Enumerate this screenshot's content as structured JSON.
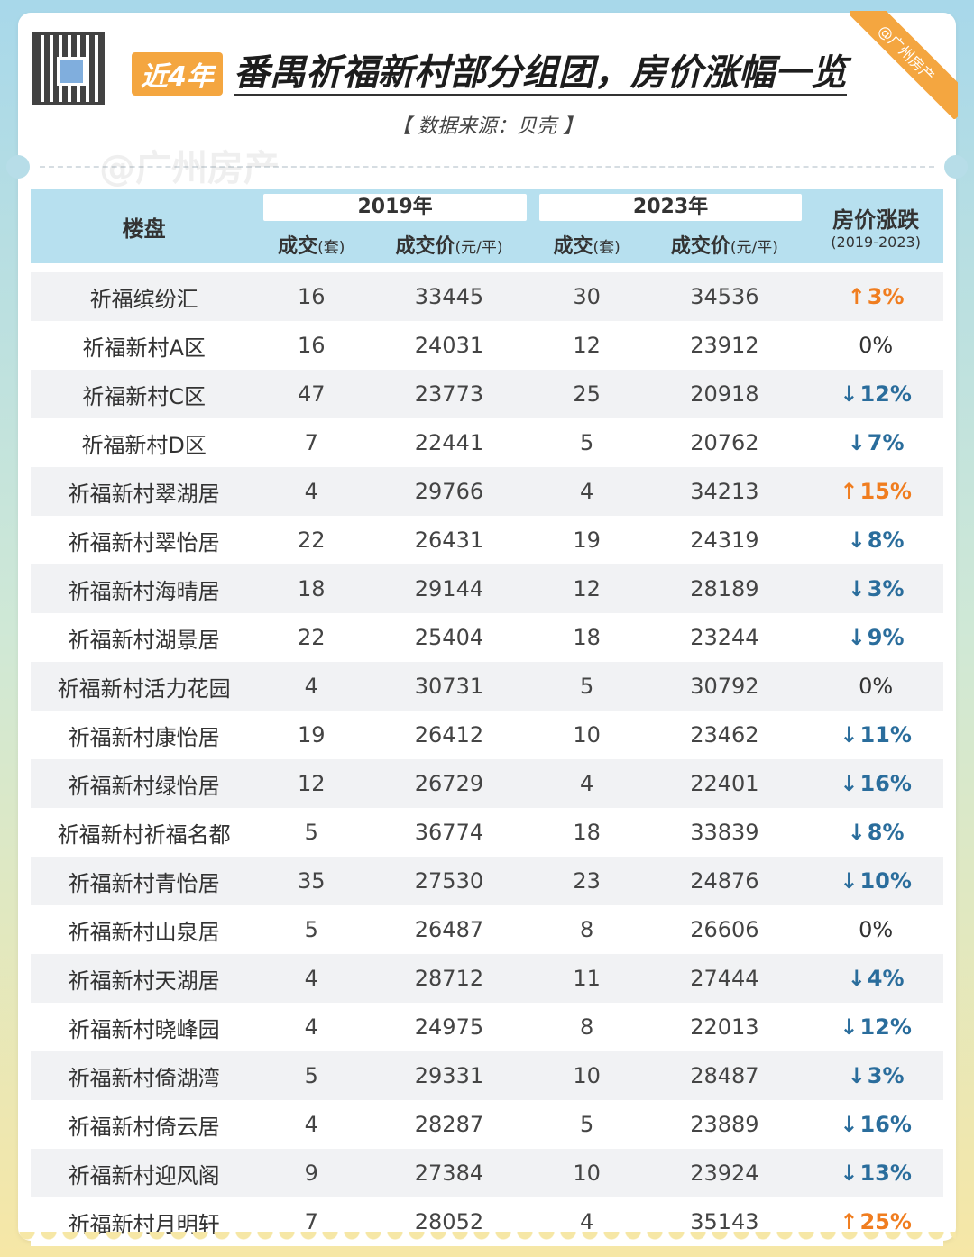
{
  "header": {
    "badge": "近4年",
    "title": "番禺祈福新村部分组团，房价涨幅一览",
    "source": "【 数据来源：贝壳 】",
    "ribbon": "@广州房产",
    "watermark": "@广州房产"
  },
  "table": {
    "col_loupan": "楼盘",
    "year_2019": "2019年",
    "year_2023": "2023年",
    "sub_deals": "成交",
    "sub_deals_unit": "(套)",
    "sub_price": "成交价",
    "sub_price_unit": "(元/平)",
    "col_change": "房价涨跌",
    "col_change_range": "(2019-2023)",
    "rows": [
      {
        "name": "祈福缤纷汇",
        "d2019": "16",
        "p2019": "33445",
        "d2023": "30",
        "p2023": "34536",
        "dir": "up",
        "arrow": "↑",
        "change": "3%"
      },
      {
        "name": "祈福新村A区",
        "d2019": "16",
        "p2019": "24031",
        "d2023": "12",
        "p2023": "23912",
        "dir": "flat",
        "arrow": "",
        "change": "0%"
      },
      {
        "name": "祈福新村C区",
        "d2019": "47",
        "p2019": "23773",
        "d2023": "25",
        "p2023": "20918",
        "dir": "down",
        "arrow": "↓",
        "change": "12%"
      },
      {
        "name": "祈福新村D区",
        "d2019": "7",
        "p2019": "22441",
        "d2023": "5",
        "p2023": "20762",
        "dir": "down",
        "arrow": "↓",
        "change": "7%"
      },
      {
        "name": "祈福新村翠湖居",
        "d2019": "4",
        "p2019": "29766",
        "d2023": "4",
        "p2023": "34213",
        "dir": "up",
        "arrow": "↑",
        "change": "15%"
      },
      {
        "name": "祈福新村翠怡居",
        "d2019": "22",
        "p2019": "26431",
        "d2023": "19",
        "p2023": "24319",
        "dir": "down",
        "arrow": "↓",
        "change": "8%"
      },
      {
        "name": "祈福新村海晴居",
        "d2019": "18",
        "p2019": "29144",
        "d2023": "12",
        "p2023": "28189",
        "dir": "down",
        "arrow": "↓",
        "change": "3%"
      },
      {
        "name": "祈福新村湖景居",
        "d2019": "22",
        "p2019": "25404",
        "d2023": "18",
        "p2023": "23244",
        "dir": "down",
        "arrow": "↓",
        "change": "9%"
      },
      {
        "name": "祈福新村活力花园",
        "d2019": "4",
        "p2019": "30731",
        "d2023": "5",
        "p2023": "30792",
        "dir": "flat",
        "arrow": "",
        "change": "0%"
      },
      {
        "name": "祈福新村康怡居",
        "d2019": "19",
        "p2019": "26412",
        "d2023": "10",
        "p2023": "23462",
        "dir": "down",
        "arrow": "↓",
        "change": "11%"
      },
      {
        "name": "祈福新村绿怡居",
        "d2019": "12",
        "p2019": "26729",
        "d2023": "4",
        "p2023": "22401",
        "dir": "down",
        "arrow": "↓",
        "change": "16%"
      },
      {
        "name": "祈福新村祈福名都",
        "d2019": "5",
        "p2019": "36774",
        "d2023": "18",
        "p2023": "33839",
        "dir": "down",
        "arrow": "↓",
        "change": "8%"
      },
      {
        "name": "祈福新村青怡居",
        "d2019": "35",
        "p2019": "27530",
        "d2023": "23",
        "p2023": "24876",
        "dir": "down",
        "arrow": "↓",
        "change": "10%"
      },
      {
        "name": "祈福新村山泉居",
        "d2019": "5",
        "p2019": "26487",
        "d2023": "8",
        "p2023": "26606",
        "dir": "flat",
        "arrow": "",
        "change": "0%"
      },
      {
        "name": "祈福新村天湖居",
        "d2019": "4",
        "p2019": "28712",
        "d2023": "11",
        "p2023": "27444",
        "dir": "down",
        "arrow": "↓",
        "change": "4%"
      },
      {
        "name": "祈福新村晓峰园",
        "d2019": "4",
        "p2019": "24975",
        "d2023": "8",
        "p2023": "22013",
        "dir": "down",
        "arrow": "↓",
        "change": "12%"
      },
      {
        "name": "祈福新村倚湖湾",
        "d2019": "5",
        "p2019": "29331",
        "d2023": "10",
        "p2023": "28487",
        "dir": "down",
        "arrow": "↓",
        "change": "3%"
      },
      {
        "name": "祈福新村倚云居",
        "d2019": "4",
        "p2019": "28287",
        "d2023": "5",
        "p2023": "23889",
        "dir": "down",
        "arrow": "↓",
        "change": "16%"
      },
      {
        "name": "祈福新村迎风阁",
        "d2019": "9",
        "p2019": "27384",
        "d2023": "10",
        "p2023": "23924",
        "dir": "down",
        "arrow": "↓",
        "change": "13%"
      },
      {
        "name": "祈福新村月明轩",
        "d2019": "7",
        "p2019": "28052",
        "d2023": "4",
        "p2023": "35143",
        "dir": "up",
        "arrow": "↑",
        "change": "25%"
      }
    ]
  },
  "colors": {
    "accent_orange": "#f4a640",
    "up": "#f07d1f",
    "down": "#2a6d9c",
    "header_bg": "#b7e0ef"
  },
  "icons": {
    "qr": "qr-code-icon"
  }
}
